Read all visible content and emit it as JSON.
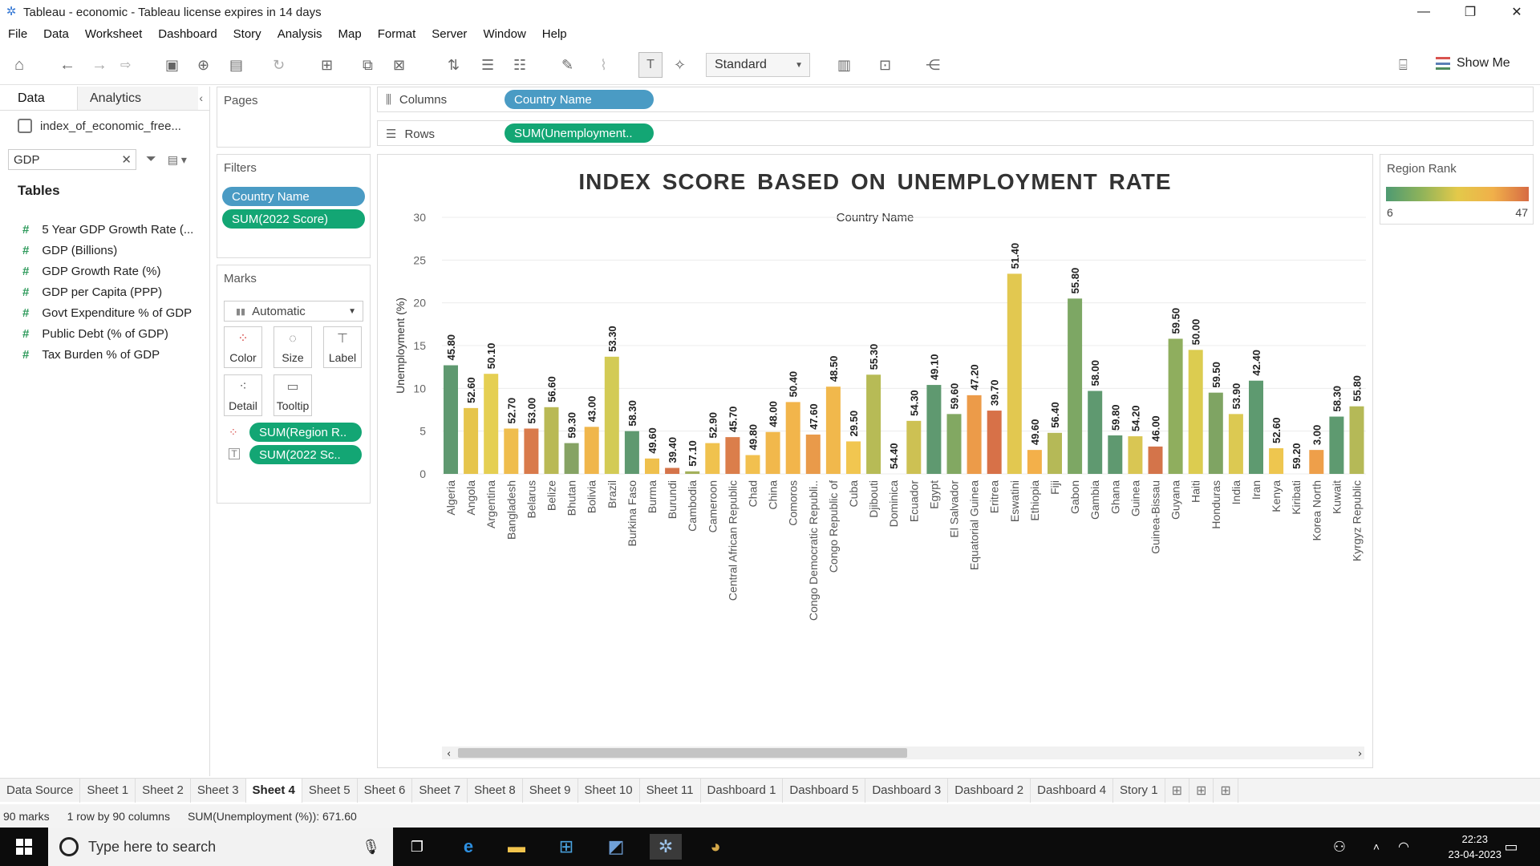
{
  "window": {
    "title": "Tableau - economic - Tableau license expires in 14 days"
  },
  "menu": [
    "File",
    "Data",
    "Worksheet",
    "Dashboard",
    "Story",
    "Analysis",
    "Map",
    "Format",
    "Server",
    "Window",
    "Help"
  ],
  "toolbar": {
    "view_select": "Standard",
    "show_me": "Show Me"
  },
  "datapane": {
    "tab_data": "Data",
    "tab_analytics": "Analytics",
    "datasource": "index_of_economic_free...",
    "search_value": "GDP",
    "tables_heading": "Tables",
    "fields": [
      "5 Year GDP Growth Rate (...",
      "GDP (Billions)",
      "GDP Growth Rate (%)",
      "GDP per Capita (PPP)",
      "Govt Expenditure % of GDP",
      "Public Debt (% of GDP)",
      "Tax Burden % of GDP"
    ]
  },
  "pages": {
    "title": "Pages"
  },
  "filters": {
    "title": "Filters",
    "items": [
      "Country Name",
      "SUM(2022 Score)"
    ]
  },
  "marks": {
    "title": "Marks",
    "type": "Automatic",
    "buttons": {
      "color": "Color",
      "size": "Size",
      "label": "Label",
      "detail": "Detail",
      "tooltip": "Tooltip"
    },
    "pills": [
      "SUM(Region R..",
      "SUM(2022 Sc.."
    ]
  },
  "shelves": {
    "columns_label": "Columns",
    "columns_pill": "Country Name",
    "rows_label": "Rows",
    "rows_pill": "SUM(Unemployment.."
  },
  "legend": {
    "title": "Region Rank",
    "min": "6",
    "max": "47",
    "colors": [
      "#4e9a72",
      "#8fb35a",
      "#e3c94a",
      "#f0b04a",
      "#d76b44"
    ]
  },
  "chart_data": {
    "type": "bar",
    "title": "INDEX  SCORE  BASED  ON  UNEMPLOYMENT  RATE",
    "header": "Country Name",
    "ylabel": "Unemployment (%)",
    "ylim": [
      0,
      30
    ],
    "yticks": [
      0,
      5,
      10,
      15,
      20,
      25,
      30
    ],
    "grid": true,
    "categories": [
      "Algeria",
      "Angola",
      "Argentina",
      "Bangladesh",
      "Belarus",
      "Belize",
      "Bhutan",
      "Bolivia",
      "Brazil",
      "Burkina Faso",
      "Burma",
      "Burundi",
      "Cambodia",
      "Cameroon",
      "Central African Republic",
      "Chad",
      "China",
      "Comoros",
      "Congo Democratic Republi..",
      "Congo Republic of",
      "Cuba",
      "Djibouti",
      "Dominica",
      "Ecuador",
      "Egypt",
      "El Salvador",
      "Equatorial Guinea",
      "Eritrea",
      "Eswatini",
      "Ethiopia",
      "Fiji",
      "Gabon",
      "Gambia",
      "Ghana",
      "Guinea",
      "Guinea-Bissau",
      "Guyana",
      "Haiti",
      "Honduras",
      "India",
      "Iran",
      "Kenya",
      "Kiribati",
      "Korea North",
      "Kuwait",
      "Kyrgyz Republic"
    ],
    "values": [
      12.7,
      7.7,
      11.7,
      5.3,
      5.3,
      7.8,
      3.6,
      5.5,
      13.7,
      5.0,
      1.8,
      0.7,
      0.3,
      3.6,
      4.3,
      2.2,
      4.9,
      8.4,
      4.6,
      10.2,
      3.8,
      11.6,
      0,
      6.2,
      10.4,
      7.0,
      9.2,
      7.4,
      23.4,
      2.8,
      4.8,
      20.5,
      9.7,
      4.5,
      4.4,
      3.2,
      15.8,
      14.5,
      9.5,
      7.0,
      10.9,
      3.0,
      0,
      2.8,
      6.7,
      7.9
    ],
    "data_labels": [
      "45.80",
      "52.60",
      "50.10",
      "52.70",
      "53.00",
      "56.60",
      "59.30",
      "43.00",
      "53.30",
      "58.30",
      "49.60",
      "39.40",
      "57.10",
      "52.90",
      "45.70",
      "49.80",
      "48.00",
      "50.40",
      "47.60",
      "48.50",
      "29.50",
      "55.30",
      "54.40",
      "54.30",
      "49.10",
      "59.60",
      "47.20",
      "39.70",
      "51.40",
      "49.60",
      "56.40",
      "55.80",
      "58.00",
      "59.80",
      "54.20",
      "46.00",
      "59.50",
      "50.00",
      "59.50",
      "53.90",
      "42.40",
      "52.60",
      "59.20",
      "3.00",
      "58.30",
      "55.80"
    ],
    "colors": [
      "#5f9970",
      "#e6c54c",
      "#e5cf52",
      "#efbd4d",
      "#d97a4b",
      "#b9b955",
      "#86a364",
      "#f0b64b",
      "#d3cb55",
      "#5f9970",
      "#efc04d",
      "#d5744a",
      "#a3b05b",
      "#f0c24e",
      "#db7e4b",
      "#f2c04f",
      "#f1b84c",
      "#f2b54b",
      "#e99a4a",
      "#f1b84c",
      "#f1c650",
      "#b7bb56",
      "#a3b05b",
      "#cdc153",
      "#5f9970",
      "#82a862",
      "#ec9b49",
      "#d77148",
      "#e2c850",
      "#f3b04a",
      "#b5b957",
      "#7da764",
      "#5f9970",
      "#5f9970",
      "#d9c653",
      "#d4744a",
      "#8fae5e",
      "#dccc50",
      "#7fa463",
      "#dcc952",
      "#5e9a70",
      "#eec64f",
      "#d4c153",
      "#ee9f4a",
      "#5e9a70",
      "#b5b957"
    ]
  },
  "sheets": [
    "Data Source",
    "Sheet 1",
    "Sheet 2",
    "Sheet 3",
    "Sheet 4",
    "Sheet 5",
    "Sheet 6",
    "Sheet 7",
    "Sheet 8",
    "Sheet 9",
    "Sheet 10",
    "Sheet 11",
    "Dashboard 1",
    "Dashboard 5",
    "Dashboard 3",
    "Dashboard 2",
    "Dashboard 4",
    "Story 1"
  ],
  "active_sheet": "Sheet 4",
  "status": {
    "marks": "90 marks",
    "dims": "1 row by 90 columns",
    "sum": "SUM(Unemployment (%)): 671.60"
  },
  "taskbar": {
    "search_placeholder": "Type here to search",
    "time": "22:23",
    "date": "23-04-2023"
  }
}
